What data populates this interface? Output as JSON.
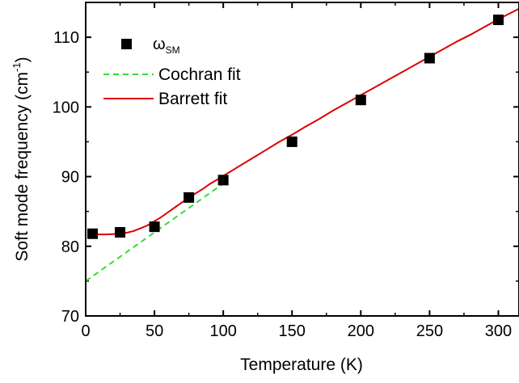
{
  "chart_data": {
    "type": "scatter",
    "xlabel": "Temperature (K)",
    "ylabel": {
      "main": "Soft mode frequency (cm",
      "sup": "-1",
      "close": ")"
    },
    "xlim": [
      0,
      315
    ],
    "ylim": [
      70,
      115
    ],
    "xticks": [
      0,
      50,
      100,
      150,
      200,
      250,
      300
    ],
    "yticks": [
      70,
      80,
      90,
      100,
      110
    ],
    "legend_position": "top-left",
    "series": [
      {
        "name": "ω",
        "name_sub": "SM",
        "kind": "markers",
        "marker": "square",
        "color": "#000000",
        "x": [
          5,
          25,
          50,
          75,
          100,
          150,
          200,
          250,
          300
        ],
        "y": [
          81.8,
          82.0,
          82.8,
          87.0,
          89.5,
          95.0,
          101.0,
          107.0,
          112.5
        ]
      },
      {
        "name": "Cochran fit",
        "kind": "line",
        "style": "dashed",
        "color": "#33dd33",
        "x": [
          0,
          100
        ],
        "y": [
          75.0,
          89.0
        ]
      },
      {
        "name": "Barrett fit",
        "kind": "line",
        "style": "solid",
        "color": "#dd0000",
        "x": [
          5,
          10,
          15,
          20,
          25,
          30,
          35,
          40,
          45,
          50,
          55,
          60,
          65,
          70,
          75,
          80,
          85,
          90,
          95,
          100,
          110,
          120,
          130,
          140,
          150,
          160,
          170,
          180,
          190,
          200,
          210,
          220,
          230,
          240,
          250,
          260,
          270,
          280,
          290,
          300,
          310,
          315
        ],
        "y": [
          81.7,
          81.7,
          81.7,
          81.75,
          81.8,
          81.95,
          82.2,
          82.6,
          83.0,
          83.6,
          84.2,
          84.9,
          85.6,
          86.3,
          86.9,
          87.6,
          88.2,
          88.9,
          89.5,
          90.1,
          91.3,
          92.5,
          93.7,
          94.9,
          96.0,
          97.2,
          98.3,
          99.5,
          100.6,
          101.7,
          102.8,
          103.9,
          105.0,
          106.1,
          107.2,
          108.3,
          109.4,
          110.4,
          111.5,
          112.6,
          113.6,
          114.1
        ]
      }
    ]
  }
}
